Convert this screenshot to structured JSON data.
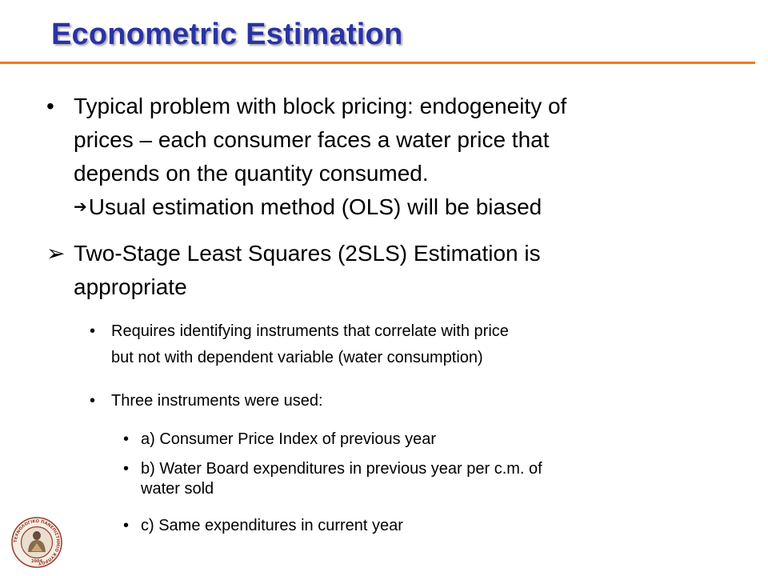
{
  "slide": {
    "title": "Econometric Estimation",
    "bullet_glyph": "•",
    "arrow_glyph": "➢",
    "implies_glyph": "➔",
    "items": [
      {
        "lines": [
          "Typical problem with block pricing: endogeneity of",
          "prices – each consumer faces a water price that",
          "depends on the quantity consumed."
        ],
        "implication": "Usual estimation method (OLS) will be biased"
      },
      {
        "lines": [
          "Two-Stage Least Squares (2SLS) Estimation is",
          "appropriate"
        ]
      },
      {
        "lines": [
          "Requires identifying instruments that correlate with price",
          "but not with dependent variable (water consumption)"
        ]
      },
      {
        "text": "Three instruments were used:"
      },
      {
        "text": "a) Consumer Price Index of previous year"
      },
      {
        "lines": [
          "b) Water Board expenditures in previous year per c.m. of",
          "water sold"
        ]
      },
      {
        "text": "c) Same expenditures in current year"
      }
    ]
  },
  "logo": {
    "ring_text": "ΤΕΧΝΟΛΟΓΙΚΟ ΠΑΝΕΠΙΣΤΗΜΙΟ ΚΥΠΡΟΥ",
    "year": "2004",
    "ring_color": "#9a3a2a"
  }
}
